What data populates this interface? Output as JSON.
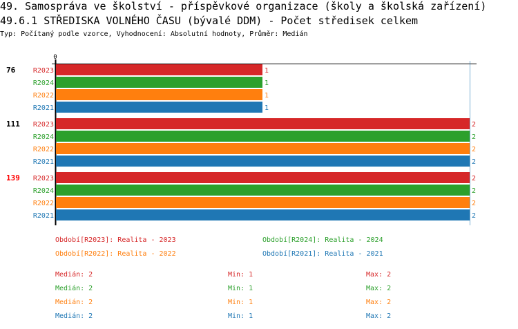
{
  "title": "49. Samospráva ve školství - příspěvkové organizace (školy a školská zařízení)",
  "subtitle": "49.6.1 STŘEDISKA VOLNÉHO ČASU (bývalé DDM) - Počet středisek celkem",
  "info": "Typ: Počítaný podle vzorce, Vyhodnocení: Absolutní hodnoty, Průměr: Medián",
  "chart_data": {
    "type": "bar",
    "orientation": "horizontal",
    "x_tick_labels": [
      "0"
    ],
    "xlim": [
      0,
      2
    ],
    "categories": [
      "76",
      "111",
      "139"
    ],
    "highlighted_category": "139",
    "highlight_color": "#ff0000",
    "series": [
      {
        "name": "R2023",
        "color": "#d62728",
        "values": [
          1,
          2,
          2
        ]
      },
      {
        "name": "R2024",
        "color": "#2ca02c",
        "values": [
          1,
          2,
          2
        ]
      },
      {
        "name": "R2022",
        "color": "#ff7f0e",
        "values": [
          1,
          2,
          2
        ]
      },
      {
        "name": "R2021",
        "color": "#1f77b4",
        "values": [
          1,
          2,
          2
        ]
      }
    ]
  },
  "legend": [
    {
      "text": "Období[R2023]: Realita - 2023",
      "color": "#d62728"
    },
    {
      "text": "Období[R2024]: Realita - 2024",
      "color": "#2ca02c"
    },
    {
      "text": "Období[R2022]: Realita - 2022",
      "color": "#ff7f0e"
    },
    {
      "text": "Období[R2021]: Realita - 2021",
      "color": "#1f77b4"
    }
  ],
  "stats": [
    {
      "median": "Medián: 2",
      "min": "Min: 1",
      "max": "Max: 2",
      "color": "#d62728"
    },
    {
      "median": "Medián: 2",
      "min": "Min: 1",
      "max": "Max: 2",
      "color": "#2ca02c"
    },
    {
      "median": "Medián: 2",
      "min": "Min: 1",
      "max": "Max: 2",
      "color": "#ff7f0e"
    },
    {
      "median": "Medián: 2",
      "min": "Min: 1",
      "max": "Max: 2",
      "color": "#1f77b4"
    }
  ]
}
